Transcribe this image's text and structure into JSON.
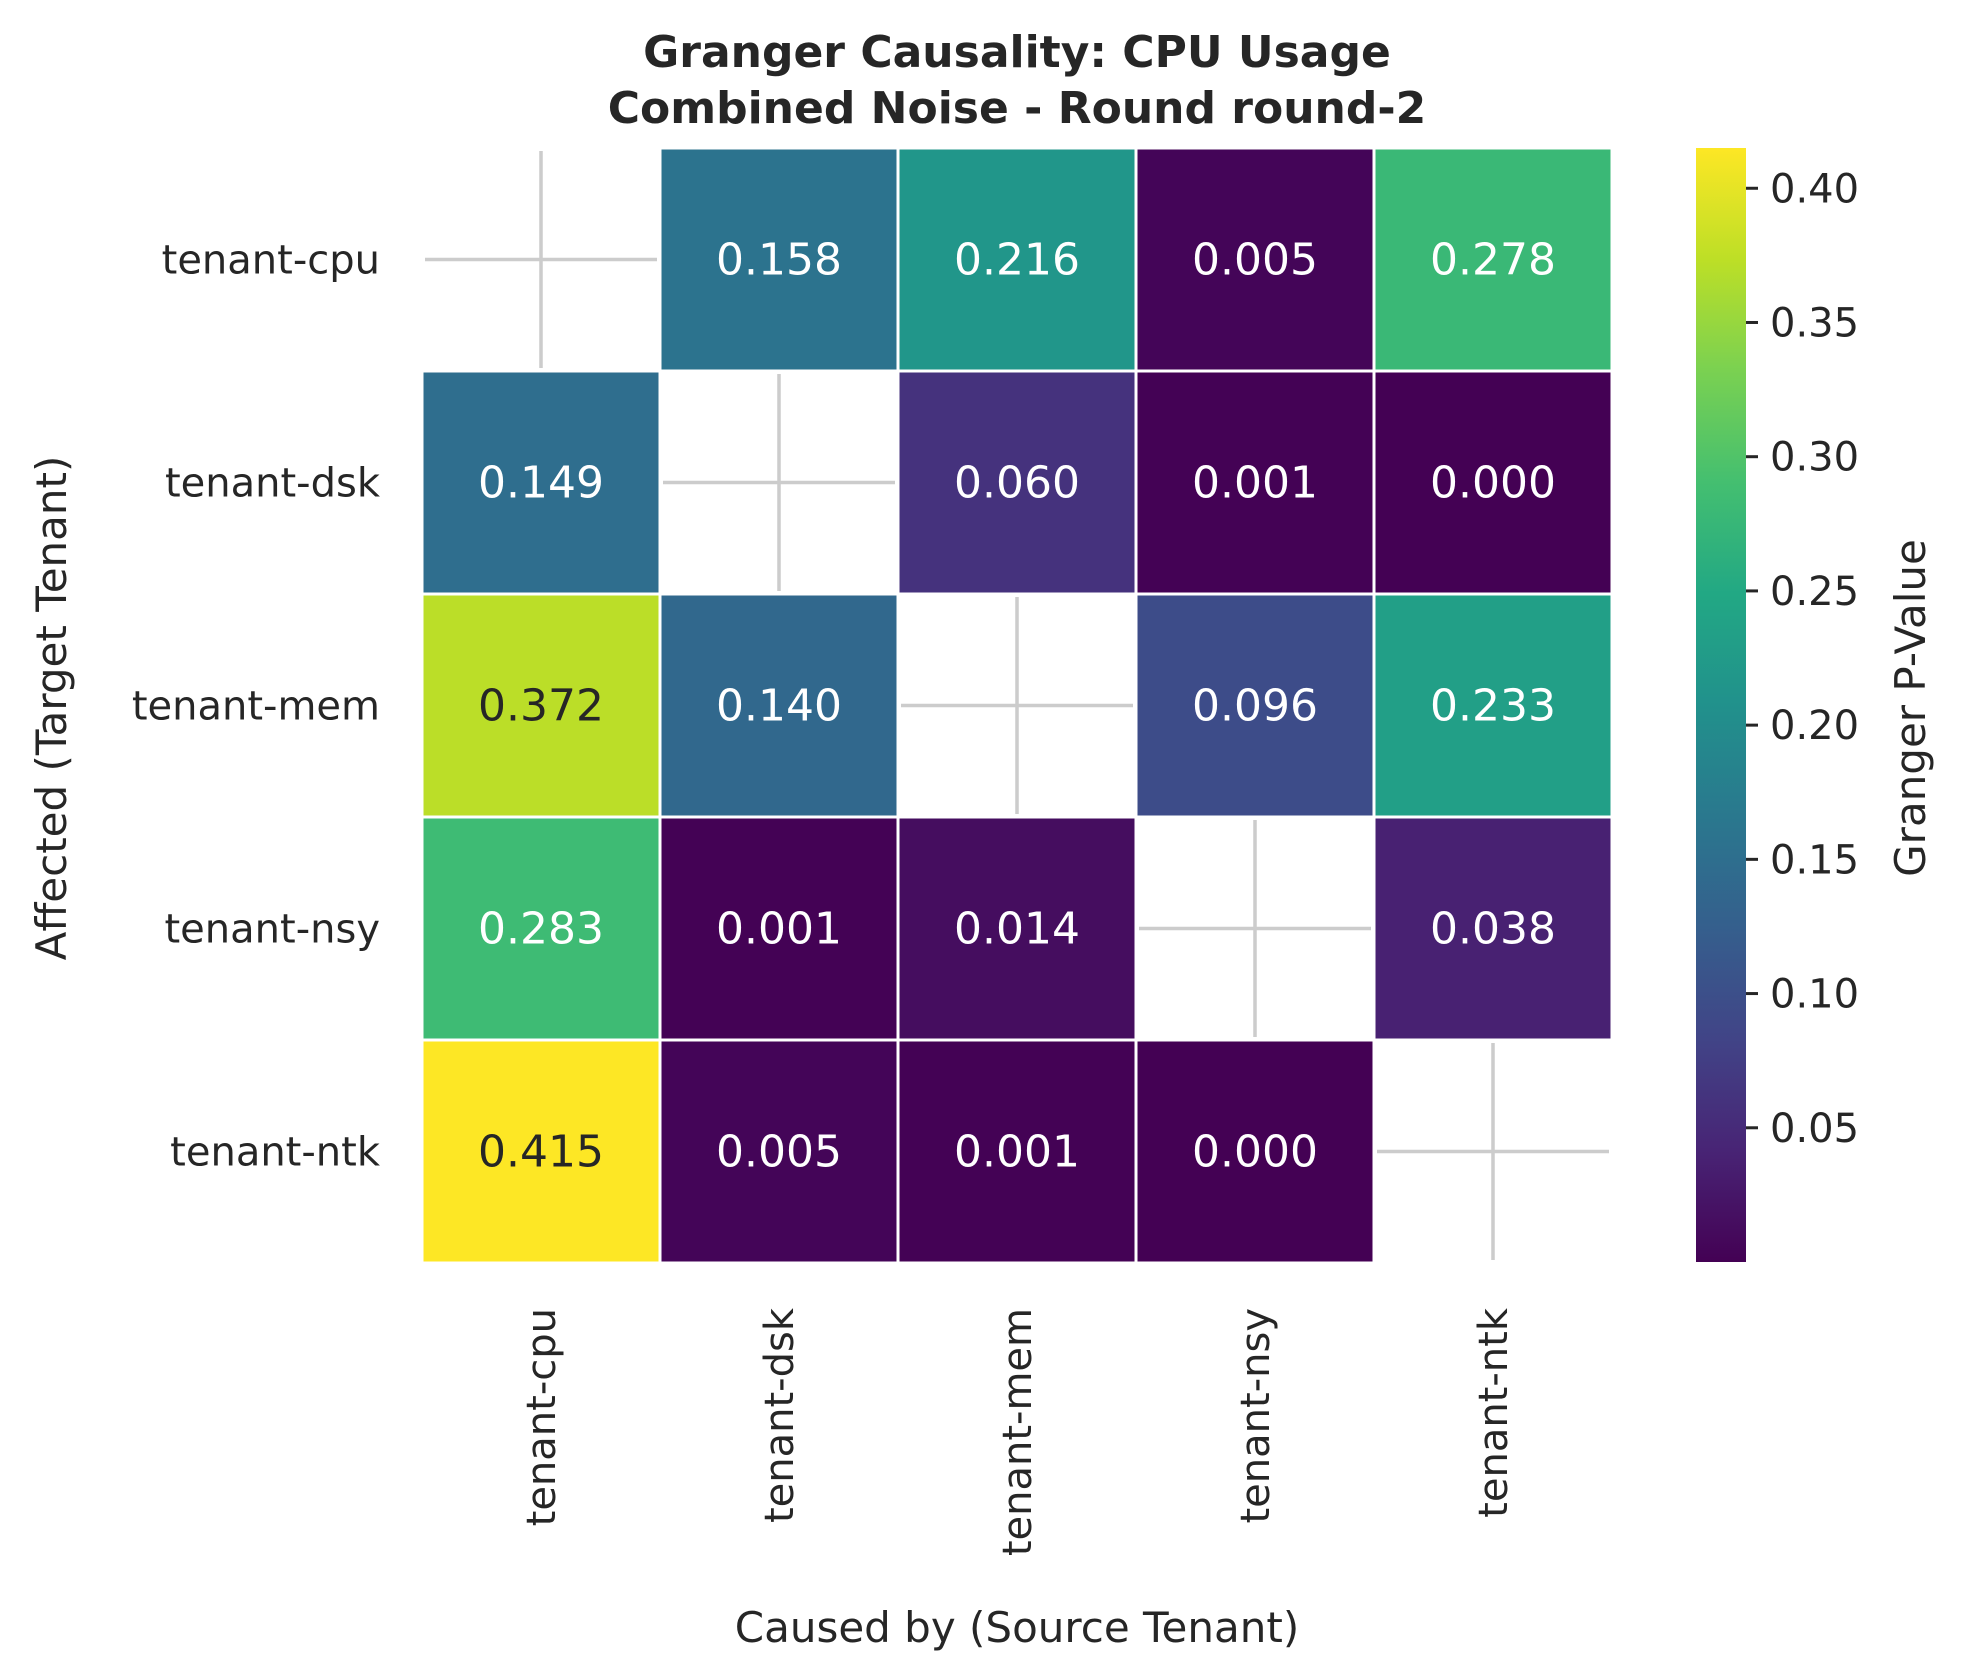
{
  "chart_data": {
    "type": "heatmap",
    "title_line1": "Granger Causality: CPU Usage",
    "title_line2": "Combined Noise - Round round-2",
    "xlabel": "Caused by (Source Tenant)",
    "ylabel": "Affected (Target Tenant)",
    "x_categories": [
      "tenant-cpu",
      "tenant-dsk",
      "tenant-mem",
      "tenant-nsy",
      "tenant-ntk"
    ],
    "y_categories": [
      "tenant-cpu",
      "tenant-dsk",
      "tenant-mem",
      "tenant-nsy",
      "tenant-ntk"
    ],
    "values": [
      [
        null,
        0.158,
        0.216,
        0.005,
        0.278
      ],
      [
        0.149,
        null,
        0.06,
        0.001,
        0.0
      ],
      [
        0.372,
        0.14,
        null,
        0.096,
        0.233
      ],
      [
        0.283,
        0.001,
        0.014,
        null,
        0.038
      ],
      [
        0.415,
        0.005,
        0.001,
        0.0,
        null
      ]
    ],
    "value_labels": [
      [
        "",
        "0.158",
        "0.216",
        "0.005",
        "0.278"
      ],
      [
        "0.149",
        "",
        "0.060",
        "0.001",
        "0.000"
      ],
      [
        "0.372",
        "0.140",
        "",
        "0.096",
        "0.233"
      ],
      [
        "0.283",
        "0.001",
        "0.014",
        "",
        "0.038"
      ],
      [
        "0.415",
        "0.005",
        "0.001",
        "0.000",
        ""
      ]
    ],
    "colormap": "viridis",
    "vmin": 0.0,
    "vmax": 0.415,
    "colorbar_label": "Granger P-Value",
    "colorbar_ticks": [
      "0.05",
      "0.10",
      "0.15",
      "0.20",
      "0.25",
      "0.30",
      "0.35",
      "0.40"
    ],
    "colorbar_tick_values": [
      0.05,
      0.1,
      0.15,
      0.2,
      0.25,
      0.3,
      0.35,
      0.4
    ],
    "diagonal_marker": "cross",
    "colors": {
      "text_dark": "#262626",
      "text_light": "#ffffff",
      "cell_border": "#ffffff",
      "diagonal_cross": "#cccccc"
    }
  }
}
